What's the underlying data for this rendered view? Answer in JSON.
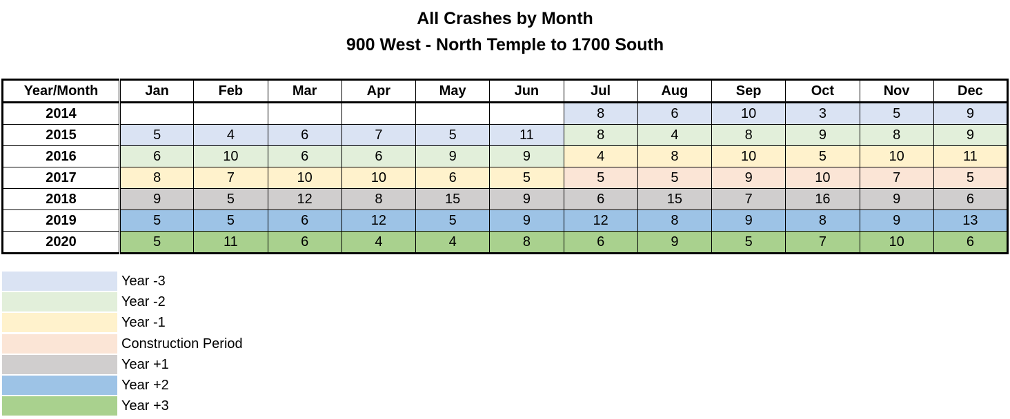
{
  "chart_data": {
    "type": "table",
    "title": "All Crashes by Month",
    "subtitle": "900 West - North Temple to 1700 South",
    "corner_header": "Year/Month",
    "columns": [
      "Jan",
      "Feb",
      "Mar",
      "Apr",
      "May",
      "Jun",
      "Jul",
      "Aug",
      "Sep",
      "Oct",
      "Nov",
      "Dec"
    ],
    "rows": [
      {
        "year": "2014",
        "values": [
          null,
          null,
          null,
          null,
          null,
          null,
          8,
          6,
          10,
          3,
          5,
          9
        ],
        "periods": [
          null,
          null,
          null,
          null,
          null,
          null,
          0,
          0,
          0,
          0,
          0,
          0
        ]
      },
      {
        "year": "2015",
        "values": [
          5,
          4,
          6,
          7,
          5,
          11,
          8,
          4,
          8,
          9,
          8,
          9
        ],
        "periods": [
          0,
          0,
          0,
          0,
          0,
          0,
          1,
          1,
          1,
          1,
          1,
          1
        ]
      },
      {
        "year": "2016",
        "values": [
          6,
          10,
          6,
          6,
          9,
          9,
          4,
          8,
          10,
          5,
          10,
          11
        ],
        "periods": [
          1,
          1,
          1,
          1,
          1,
          1,
          2,
          2,
          2,
          2,
          2,
          2
        ]
      },
      {
        "year": "2017",
        "values": [
          8,
          7,
          10,
          10,
          6,
          5,
          5,
          5,
          9,
          10,
          7,
          5
        ],
        "periods": [
          2,
          2,
          2,
          2,
          2,
          2,
          3,
          3,
          3,
          3,
          3,
          3
        ]
      },
      {
        "year": "2018",
        "values": [
          9,
          5,
          12,
          8,
          15,
          9,
          6,
          15,
          7,
          16,
          9,
          6
        ],
        "periods": [
          4,
          4,
          4,
          4,
          4,
          4,
          4,
          4,
          4,
          4,
          4,
          4
        ]
      },
      {
        "year": "2019",
        "values": [
          5,
          5,
          6,
          12,
          5,
          9,
          12,
          8,
          9,
          8,
          9,
          13
        ],
        "periods": [
          5,
          5,
          5,
          5,
          5,
          5,
          5,
          5,
          5,
          5,
          5,
          5
        ]
      },
      {
        "year": "2020",
        "values": [
          5,
          11,
          6,
          4,
          4,
          8,
          6,
          9,
          5,
          7,
          10,
          6
        ],
        "periods": [
          6,
          6,
          6,
          6,
          6,
          6,
          6,
          6,
          6,
          6,
          6,
          6
        ]
      }
    ],
    "legend": [
      {
        "label": "Year -3",
        "color": "#dae3f3"
      },
      {
        "label": "Year -2",
        "color": "#e2efda"
      },
      {
        "label": "Year -1",
        "color": "#fff2cc"
      },
      {
        "label": "Construction Period",
        "color": "#fbe5d6"
      },
      {
        "label": "Year +1",
        "color": "#d0cece"
      },
      {
        "label": "Year +2",
        "color": "#9dc3e6"
      },
      {
        "label": "Year +3",
        "color": "#a9d18e"
      }
    ]
  }
}
